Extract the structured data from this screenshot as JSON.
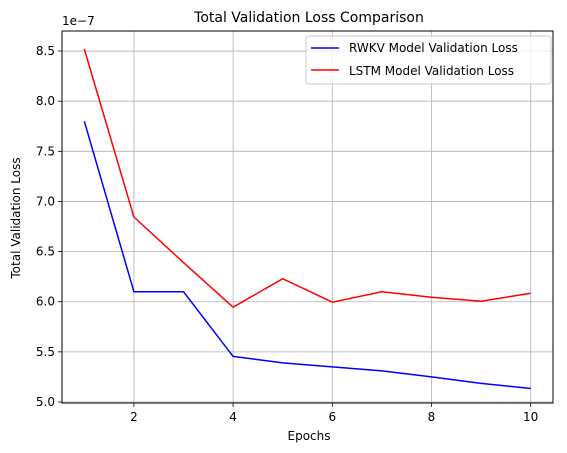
{
  "chart_data": {
    "type": "line",
    "title": "Total Validation Loss Comparison",
    "xlabel": "Epochs",
    "ylabel": "Total Validation Loss",
    "y_scale_label": "1e−7",
    "xlim": [
      0.55,
      10.45
    ],
    "ylim": [
      4.99,
      8.7
    ],
    "x_ticks": [
      2,
      4,
      6,
      8,
      10
    ],
    "x_tick_labels": [
      "2",
      "4",
      "6",
      "8",
      "10"
    ],
    "y_ticks": [
      5.0,
      5.5,
      6.0,
      6.5,
      7.0,
      7.5,
      8.0,
      8.5
    ],
    "y_tick_labels": [
      "5.0",
      "5.5",
      "6.0",
      "6.5",
      "7.0",
      "7.5",
      "8.0",
      "8.5"
    ],
    "grid": true,
    "legend_position": "top-right",
    "x": [
      1,
      2,
      3,
      4,
      5,
      6,
      7,
      8,
      9,
      10
    ],
    "series": [
      {
        "name": "RWKV Model Validation Loss",
        "color": "#0000ff",
        "values": [
          7.8,
          6.1,
          6.1,
          5.455,
          5.39,
          5.35,
          5.31,
          5.25,
          5.185,
          5.135
        ]
      },
      {
        "name": "LSTM Model Validation Loss",
        "color": "#ff0000",
        "values": [
          8.52,
          6.845,
          6.39,
          5.945,
          6.23,
          5.995,
          6.1,
          6.045,
          6.005,
          6.085
        ]
      }
    ]
  }
}
